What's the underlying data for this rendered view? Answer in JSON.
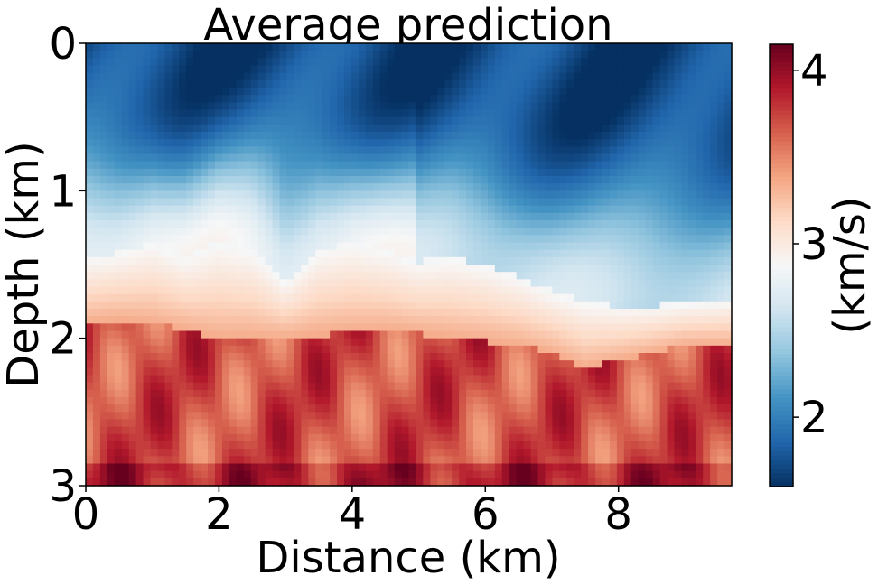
{
  "chart_data": {
    "type": "heatmap",
    "title": "Average prediction",
    "xlabel": "Distance (km)",
    "ylabel": "Depth (km)",
    "colorbar_label": "(km/s)",
    "colormap": "RdBu_r",
    "xlim": [
      0,
      9.7
    ],
    "ylim": [
      3,
      0
    ],
    "x_ticks": [
      0,
      2,
      4,
      6,
      8
    ],
    "y_ticks": [
      0,
      1,
      2,
      3
    ],
    "colorbar_range": [
      1.6,
      4.15
    ],
    "colorbar_ticks": [
      2,
      3,
      4
    ],
    "x_profile": [
      0,
      0.5,
      1.0,
      1.5,
      2.0,
      2.5,
      3.0,
      3.5,
      4.0,
      4.5,
      5.0,
      5.5,
      6.0,
      6.5,
      7.0,
      7.5,
      8.0,
      8.5,
      9.0,
      9.7
    ],
    "low_velocity_boundary_depth": [
      1.45,
      1.42,
      1.35,
      1.45,
      1.35,
      1.4,
      1.62,
      1.4,
      1.35,
      1.4,
      1.48,
      1.45,
      1.5,
      1.58,
      1.68,
      1.75,
      1.78,
      1.78,
      1.76,
      1.74
    ],
    "high_velocity_top_depth": [
      1.9,
      1.88,
      1.9,
      1.95,
      2.0,
      2.0,
      2.0,
      1.98,
      1.96,
      1.95,
      1.97,
      2.0,
      2.02,
      2.05,
      2.1,
      2.2,
      2.15,
      2.1,
      2.05,
      2.05
    ],
    "velocity_top": 1.7,
    "velocity_mid": 2.9,
    "velocity_bottom": 3.9
  }
}
